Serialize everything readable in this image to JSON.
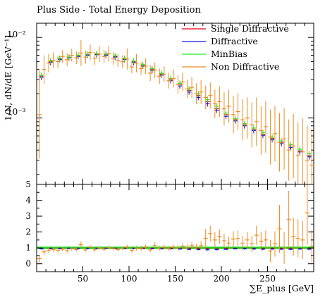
{
  "chart_data": [
    {
      "type": "scatter",
      "title": "Plus Side - Total Energy Deposition",
      "ylabel": "1/N, dN/dE [GeV⁻¹]",
      "yscale": "log",
      "xlim": [
        0,
        300
      ],
      "ylim": [
        0.00015,
        0.015
      ],
      "ytick_labels": [
        "10⁻²",
        "10⁻³"
      ],
      "ytick_values": [
        0.01,
        0.001
      ],
      "legend_position": "top-right",
      "series": [
        {
          "name": "Single Diffractive",
          "color": "#e8001c",
          "x": [
            5,
            15,
            25,
            35,
            45,
            55,
            65,
            75,
            85,
            95,
            105,
            115,
            125,
            135,
            145,
            155,
            165,
            175,
            185,
            195,
            205,
            215,
            225,
            235,
            245,
            255,
            265,
            275,
            285,
            295
          ],
          "y": [
            0.0033,
            0.005,
            0.0054,
            0.0056,
            0.0059,
            0.0061,
            0.0062,
            0.0061,
            0.0058,
            0.0054,
            0.005,
            0.0045,
            0.004,
            0.0035,
            0.003,
            0.0026,
            0.0022,
            0.0019,
            0.0016,
            0.0013,
            0.0011,
            0.00095,
            0.00082,
            0.00072,
            0.00063,
            0.00056,
            0.0005,
            0.00045,
            0.00039,
            0.00034
          ]
        },
        {
          "name": "Diffractive",
          "color": "#1414ee",
          "x": [
            5,
            15,
            25,
            35,
            45,
            55,
            65,
            75,
            85,
            95,
            105,
            115,
            125,
            135,
            145,
            155,
            165,
            175,
            185,
            195,
            205,
            215,
            225,
            235,
            245,
            255,
            265,
            275,
            285,
            295
          ],
          "y": [
            0.0032,
            0.0049,
            0.0053,
            0.0056,
            0.0058,
            0.006,
            0.0061,
            0.006,
            0.0057,
            0.0053,
            0.0049,
            0.0044,
            0.0039,
            0.0034,
            0.0029,
            0.0025,
            0.0021,
            0.0018,
            0.0015,
            0.00125,
            0.00105,
            0.00092,
            0.0008,
            0.0007,
            0.00061,
            0.00054,
            0.00048,
            0.00043,
            0.00038,
            0.00033
          ]
        },
        {
          "name": "MinBias",
          "color": "#22ee22",
          "x": [
            5,
            15,
            25,
            35,
            45,
            55,
            65,
            75,
            85,
            95,
            105,
            115,
            125,
            135,
            145,
            155,
            165,
            175,
            185,
            195,
            205,
            215,
            225,
            235,
            245,
            255,
            265,
            275,
            285,
            295
          ],
          "y": [
            0.0034,
            0.0051,
            0.0055,
            0.0057,
            0.006,
            0.0062,
            0.0063,
            0.0062,
            0.0059,
            0.0055,
            0.0051,
            0.0046,
            0.0041,
            0.0036,
            0.0031,
            0.0027,
            0.0023,
            0.002,
            0.0017,
            0.0014,
            0.00115,
            0.00098,
            0.00085,
            0.00075,
            0.00066,
            0.00058,
            0.00052,
            0.00047,
            0.00041,
            0.00036
          ]
        },
        {
          "name": "Non Diffractive",
          "color": "#f08a1e",
          "x": [
            3,
            8,
            13,
            18,
            23,
            28,
            33,
            38,
            43,
            48,
            53,
            58,
            63,
            68,
            73,
            78,
            83,
            88,
            93,
            98,
            103,
            108,
            113,
            118,
            123,
            128,
            133,
            138,
            143,
            148,
            153,
            158,
            163,
            168,
            173,
            178,
            183,
            188,
            193,
            198,
            203,
            208,
            213,
            218,
            223,
            228,
            233,
            238,
            243,
            248,
            253,
            258,
            263,
            268,
            273,
            278,
            283,
            288,
            293,
            298
          ],
          "y": [
            0.0011,
            0.004,
            0.0048,
            0.0052,
            0.005,
            0.0058,
            0.0053,
            0.006,
            0.0056,
            0.0064,
            0.0057,
            0.0065,
            0.0055,
            0.0062,
            0.0058,
            0.0063,
            0.0055,
            0.0052,
            0.005,
            0.0054,
            0.0043,
            0.0048,
            0.0041,
            0.0044,
            0.0036,
            0.0039,
            0.0033,
            0.0035,
            0.0029,
            0.0031,
            0.0026,
            0.0028,
            0.0023,
            0.0024,
            0.002,
            0.0021,
            0.0018,
            0.0019,
            0.0015,
            0.0016,
            0.0013,
            0.0014,
            0.0011,
            0.0012,
            0.00095,
            0.001,
            0.00082,
            0.0009,
            0.0007,
            0.00078,
            0.00058,
            0.00064,
            0.0005,
            0.00055,
            0.0004,
            0.00045,
            0.00034,
            0.00038,
            0.0003,
            0.00026
          ],
          "yerr_factor": [
            3.5,
            1.5,
            1.3,
            1.25,
            1.2,
            1.2,
            1.2,
            1.2,
            1.2,
            1.45,
            1.2,
            1.25,
            1.2,
            1.25,
            1.2,
            1.25,
            1.2,
            1.2,
            1.2,
            1.35,
            1.2,
            1.3,
            1.2,
            1.25,
            1.25,
            1.25,
            1.25,
            1.25,
            1.25,
            1.3,
            1.3,
            1.3,
            1.3,
            1.35,
            1.35,
            1.4,
            1.4,
            1.45,
            1.5,
            1.55,
            1.6,
            1.6,
            1.7,
            1.7,
            1.8,
            1.8,
            1.9,
            2.0,
            2.0,
            2.1,
            2.2,
            2.2,
            2.3,
            2.4,
            2.4,
            2.5,
            2.6,
            2.6,
            2.7,
            2.8
          ]
        }
      ]
    },
    {
      "type": "scatter",
      "title": "",
      "xlabel": "∑E_plus [GeV]",
      "xlim": [
        0,
        300
      ],
      "ylim": [
        -0.5,
        5
      ],
      "xticks": [
        50,
        100,
        150,
        200,
        250
      ],
      "yticks": [
        0,
        1,
        2,
        3,
        4,
        5
      ],
      "ratio_band": {
        "color": "#22ee22",
        "center": 1.0
      },
      "series": [
        {
          "name": "Single Diffractive",
          "color": "#e8001c",
          "x": [
            5,
            15,
            25,
            35,
            45,
            55,
            65,
            75,
            85,
            95,
            105,
            115,
            125,
            135,
            145,
            155,
            165,
            175,
            185,
            195,
            205,
            215,
            225,
            235,
            245,
            255,
            265,
            275,
            285,
            295
          ],
          "y": [
            0.97,
            0.98,
            0.98,
            0.98,
            0.98,
            0.98,
            0.98,
            0.98,
            0.98,
            0.98,
            0.98,
            0.98,
            0.98,
            0.97,
            0.97,
            0.96,
            0.96,
            0.95,
            0.94,
            0.93,
            0.96,
            0.97,
            0.96,
            0.96,
            0.95,
            0.97,
            0.96,
            0.96,
            0.95,
            0.94
          ]
        },
        {
          "name": "Diffractive",
          "color": "#1414ee",
          "x": [
            5,
            15,
            25,
            35,
            45,
            55,
            65,
            75,
            85,
            95,
            105,
            115,
            125,
            135,
            145,
            155,
            165,
            175,
            185,
            195,
            205,
            215,
            225,
            235,
            245,
            255,
            265,
            275,
            285,
            295
          ],
          "y": [
            0.94,
            0.96,
            0.96,
            0.98,
            0.97,
            0.97,
            0.97,
            0.97,
            0.97,
            0.96,
            0.96,
            0.96,
            0.95,
            0.94,
            0.94,
            0.93,
            0.91,
            0.9,
            0.88,
            0.89,
            0.91,
            0.94,
            0.94,
            0.93,
            0.92,
            0.93,
            0.92,
            0.91,
            0.93,
            0.92
          ]
        },
        {
          "name": "Non Diffractive",
          "color": "#f08a1e",
          "x": [
            3,
            8,
            13,
            18,
            23,
            28,
            33,
            38,
            43,
            48,
            53,
            58,
            63,
            68,
            73,
            78,
            83,
            88,
            93,
            98,
            103,
            108,
            113,
            118,
            123,
            128,
            133,
            138,
            143,
            148,
            153,
            158,
            163,
            168,
            173,
            178,
            183,
            188,
            193,
            198,
            203,
            208,
            213,
            218,
            223,
            228,
            233,
            238,
            243,
            248,
            253,
            258,
            263,
            268,
            273,
            278,
            283,
            288,
            293,
            298
          ],
          "y": [
            0.32,
            0.75,
            0.85,
            0.9,
            0.85,
            0.92,
            0.82,
            0.95,
            0.9,
            1.2,
            0.88,
            1.05,
            0.88,
            1.0,
            0.92,
            1.02,
            0.95,
            0.9,
            0.98,
            1.05,
            0.85,
            0.98,
            0.95,
            1.05,
            0.88,
            1.15,
            0.98,
            1.05,
            0.95,
            1.05,
            1.0,
            1.1,
            1.02,
            1.15,
            1.05,
            1.15,
            1.6,
            1.9,
            1.5,
            1.7,
            1.45,
            1.3,
            1.55,
            1.6,
            1.3,
            1.5,
            1.25,
            1.8,
            1.4,
            1.5,
            0.8,
            1.25,
            2.2,
            1.0,
            2.8,
            1.7,
            1.6,
            1.5,
            3.2,
            1.1
          ],
          "yerr": [
            0.25,
            0.2,
            0.15,
            0.15,
            0.15,
            0.12,
            0.12,
            0.12,
            0.12,
            0.2,
            0.12,
            0.12,
            0.12,
            0.12,
            0.12,
            0.12,
            0.12,
            0.12,
            0.12,
            0.15,
            0.15,
            0.15,
            0.15,
            0.15,
            0.15,
            0.2,
            0.15,
            0.15,
            0.15,
            0.15,
            0.2,
            0.2,
            0.2,
            0.2,
            0.2,
            0.25,
            0.6,
            0.5,
            0.5,
            0.45,
            0.45,
            0.4,
            0.5,
            0.5,
            0.45,
            0.5,
            0.5,
            0.6,
            0.6,
            0.6,
            0.7,
            0.8,
            1.5,
            1.0,
            1.8,
            1.2,
            1.2,
            1.2,
            2.0,
            1.0
          ]
        }
      ]
    }
  ]
}
